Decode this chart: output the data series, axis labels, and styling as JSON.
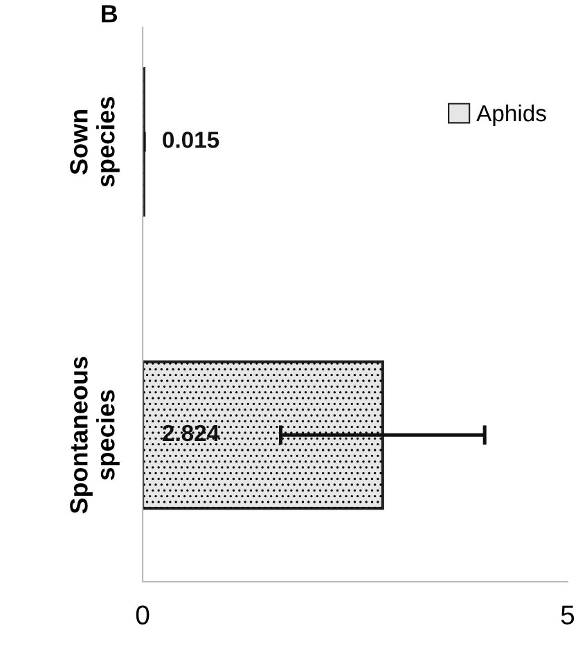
{
  "chart_data": {
    "type": "bar",
    "orientation": "horizontal",
    "title": "B",
    "categories": [
      "Sown species",
      "Spontaneous species"
    ],
    "series": [
      {
        "name": "Aphids",
        "color": "#e6e6e6",
        "colors": [
          "#222222",
          "#e6e6e6"
        ],
        "values": [
          0.015,
          2.824
        ],
        "errors": [
          null,
          1.2
        ]
      }
    ],
    "xlim": [
      0,
      5
    ],
    "xticks": [
      0,
      5
    ],
    "data_labels": true,
    "legend": "top right",
    "grid": false
  }
}
